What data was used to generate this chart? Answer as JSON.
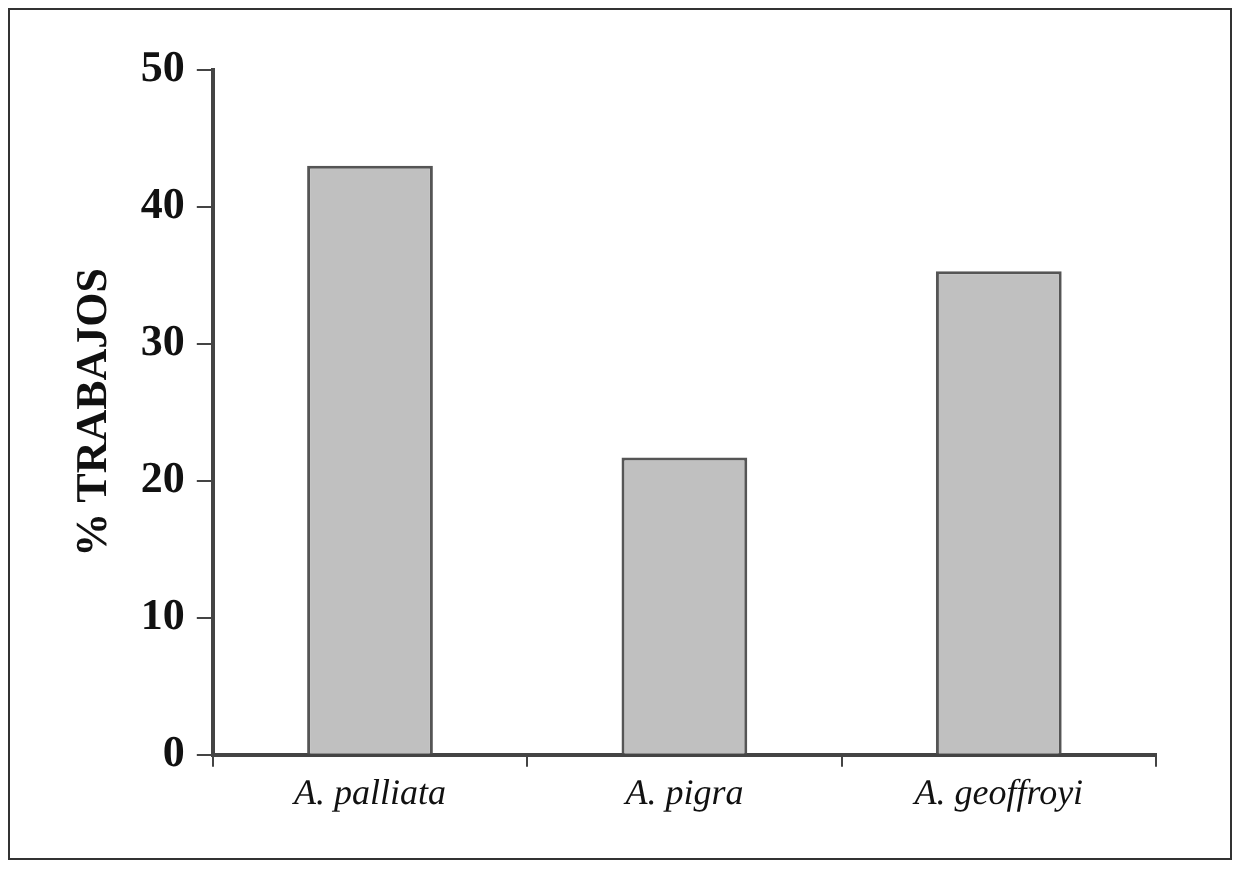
{
  "chart_data": {
    "type": "bar",
    "ylabel": "% TRABAJOS",
    "categories": [
      "A. palliata",
      "A. pigra",
      "A. geoffroyi"
    ],
    "values": [
      43,
      21.7,
      35.3
    ],
    "color": "#c0c0c0",
    "ylim": [
      0,
      50
    ],
    "yticks": [
      0,
      10,
      20,
      30,
      40,
      50
    ],
    "grid": false,
    "legend": false
  }
}
